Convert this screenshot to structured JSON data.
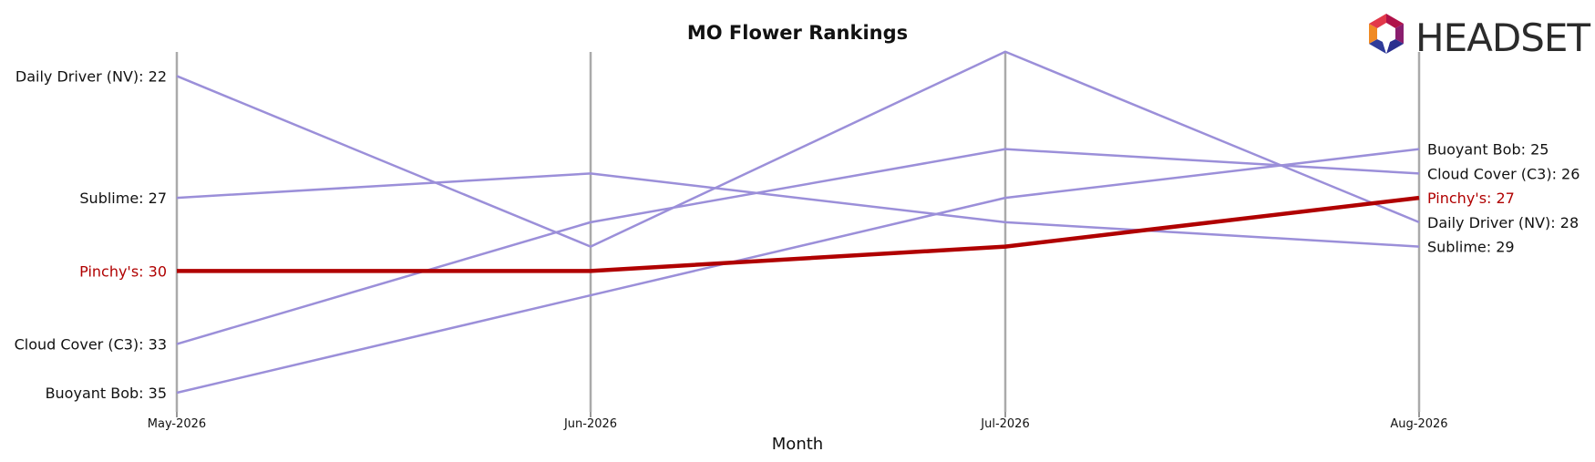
{
  "chart_data": {
    "type": "line",
    "title": "MO Flower Rankings",
    "xlabel": "Month",
    "ylabel": "",
    "categories": [
      "May-2026",
      "Jun-2026",
      "Jul-2026",
      "Aug-2026"
    ],
    "y_inverted": true,
    "ylim": [
      36,
      20
    ],
    "highlight": "Pinchy's",
    "series": [
      {
        "name": "Daily Driver (NV)",
        "values": [
          22,
          29,
          21,
          28
        ],
        "color": "#9b8fd9"
      },
      {
        "name": "Sublime",
        "values": [
          27,
          26,
          28,
          29
        ],
        "color": "#9b8fd9"
      },
      {
        "name": "Pinchy's",
        "values": [
          30,
          30,
          29,
          27
        ],
        "color": "#b00000"
      },
      {
        "name": "Cloud Cover (C3)",
        "values": [
          33,
          28,
          25,
          26
        ],
        "color": "#9b8fd9"
      },
      {
        "name": "Buoyant Bob",
        "values": [
          35,
          31,
          27,
          25
        ],
        "color": "#9b8fd9"
      }
    ],
    "label_text_color": "#111111",
    "highlight_text_color": "#b00000",
    "grid": "vertical lines at each month"
  },
  "logo": {
    "text": "HEADSET",
    "icon": "headset-hexagon-logo-icon"
  }
}
